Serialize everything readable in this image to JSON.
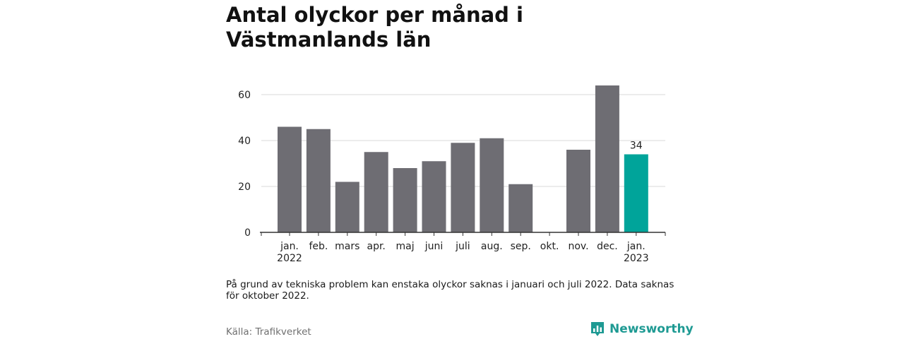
{
  "title": "Antal olyckor per månad i Västmanlands län",
  "note": "På grund av tekniska problem kan enstaka olyckor saknas i januari och juli 2022. Data saknas för oktober 2022.",
  "source": "Källa: Trafikverket",
  "brand": {
    "name": "Newsworthy",
    "logo_icon": "bar-chart-speech-bubble-icon"
  },
  "colors": {
    "bar": "#6e6d73",
    "highlight": "#00a49a",
    "grid": "#d9d9d9",
    "axis": "#333333"
  },
  "chart_data": {
    "type": "bar",
    "title": "Antal olyckor per månad i Västmanlands län",
    "categories": [
      [
        "jan.",
        "2022"
      ],
      [
        "feb."
      ],
      [
        "mars"
      ],
      [
        "apr."
      ],
      [
        "maj"
      ],
      [
        "juni"
      ],
      [
        "juli"
      ],
      [
        "aug."
      ],
      [
        "sep."
      ],
      [
        "okt."
      ],
      [
        "nov."
      ],
      [
        "dec."
      ],
      [
        "jan.",
        "2023"
      ]
    ],
    "values": [
      46,
      45,
      22,
      35,
      28,
      31,
      39,
      41,
      21,
      null,
      36,
      64,
      34
    ],
    "highlight_index": 12,
    "data_labels": {
      "12": "34"
    },
    "ylim": [
      0,
      64
    ],
    "yticks": [
      0,
      20,
      40,
      60
    ],
    "grid": true,
    "legend": "none"
  }
}
